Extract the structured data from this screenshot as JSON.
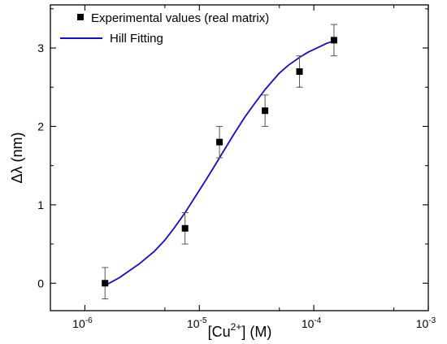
{
  "chart_data": {
    "type": "scatter",
    "xscale": "log",
    "xlim": [
      5e-07,
      0.001
    ],
    "ylim": [
      -0.35,
      3.55
    ],
    "xlabel_main": "[Cu",
    "xlabel_sup": "2+",
    "xlabel_rest": "] (M)",
    "ylabel": "Δλ (nm)",
    "x_ticks": [
      {
        "value": 1e-06,
        "base": "10",
        "exp": "-6"
      },
      {
        "value": 1e-05,
        "base": "10",
        "exp": "-5"
      },
      {
        "value": 0.0001,
        "base": "10",
        "exp": "-4"
      },
      {
        "value": 0.001,
        "base": "10",
        "exp": "-3"
      }
    ],
    "y_ticks": [
      {
        "value": 0,
        "label": "0"
      },
      {
        "value": 1,
        "label": "1"
      },
      {
        "value": 2,
        "label": "2"
      },
      {
        "value": 3,
        "label": "3"
      }
    ],
    "legend_position": "top-left",
    "series": [
      {
        "name": "Experimental values (real matrix)",
        "kind": "points",
        "color": "#000000",
        "x": [
          1.5e-06,
          7.5e-06,
          1.5e-05,
          3.75e-05,
          7.5e-05,
          0.00015
        ],
        "y": [
          0.0,
          0.7,
          1.8,
          2.2,
          2.7,
          3.1
        ],
        "err": [
          0.2,
          0.2,
          0.2,
          0.2,
          0.2,
          0.2
        ]
      },
      {
        "name": "Hill Fitting",
        "kind": "line",
        "color": "#1010c8",
        "x": [
          1.5e-06,
          2e-06,
          3e-06,
          4e-06,
          5e-06,
          6e-06,
          7.5e-06,
          9e-06,
          1.1e-05,
          1.3e-05,
          1.5e-05,
          2e-05,
          2.5e-05,
          3e-05,
          3.75e-05,
          5e-05,
          6e-05,
          7.5e-05,
          9e-05,
          0.00011,
          0.00013,
          0.00015
        ],
        "y": [
          -0.03,
          0.07,
          0.25,
          0.4,
          0.55,
          0.7,
          0.9,
          1.08,
          1.28,
          1.45,
          1.6,
          1.9,
          2.12,
          2.28,
          2.47,
          2.68,
          2.78,
          2.88,
          2.95,
          3.01,
          3.06,
          3.09
        ]
      }
    ]
  }
}
